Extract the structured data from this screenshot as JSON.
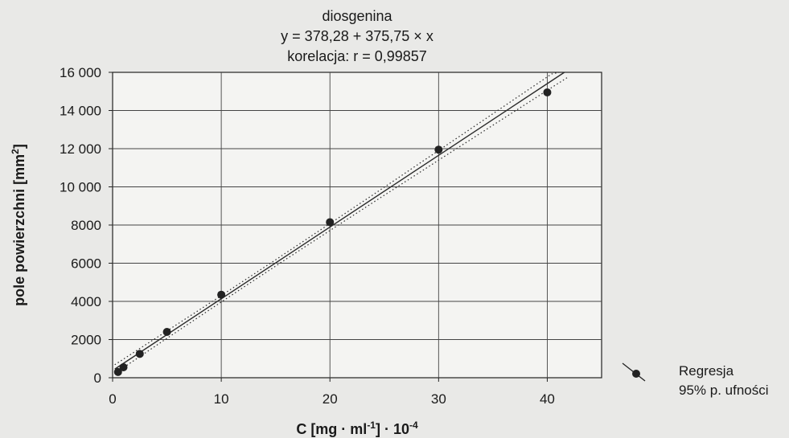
{
  "chart_data": {
    "type": "scatter",
    "title": "diosgenina",
    "subtitle_lines": [
      "y = 378,28 + 375,75 × x",
      "korelacja: r = 0,99857"
    ],
    "xlabel": "C [mg · ml",
    "xlabel_sup1": "-1",
    "xlabel_mid": "] · 10",
    "xlabel_sup2": "-4",
    "ylabel": "pole powierzchni [mm",
    "ylabel_sup": "2",
    "ylabel_end": "]",
    "xlim": [
      0,
      45
    ],
    "ylim": [
      0,
      16000
    ],
    "x_ticks": [
      0,
      10,
      20,
      30,
      40
    ],
    "x_tick_labels": [
      "0",
      "10",
      "20",
      "30",
      "40"
    ],
    "y_ticks": [
      0,
      2000,
      4000,
      6000,
      8000,
      10000,
      12000,
      14000,
      16000
    ],
    "y_tick_labels": [
      "0",
      "2000",
      "4000",
      "6000",
      "8000",
      "10 000",
      "12 000",
      "14 000",
      "16 000"
    ],
    "grid": true,
    "regression": {
      "intercept": 378.28,
      "slope": 375.75
    },
    "series": [
      {
        "x": [
          0.5,
          1.0,
          2.5,
          5.0,
          10.0,
          20.0,
          30.0,
          40.0
        ],
        "y": [
          300,
          550,
          1250,
          2400,
          4350,
          8150,
          11950,
          14950
        ]
      }
    ],
    "legend": {
      "position": "bottom-right",
      "entries": [
        "Regresja",
        "95% p. ufności"
      ]
    }
  }
}
